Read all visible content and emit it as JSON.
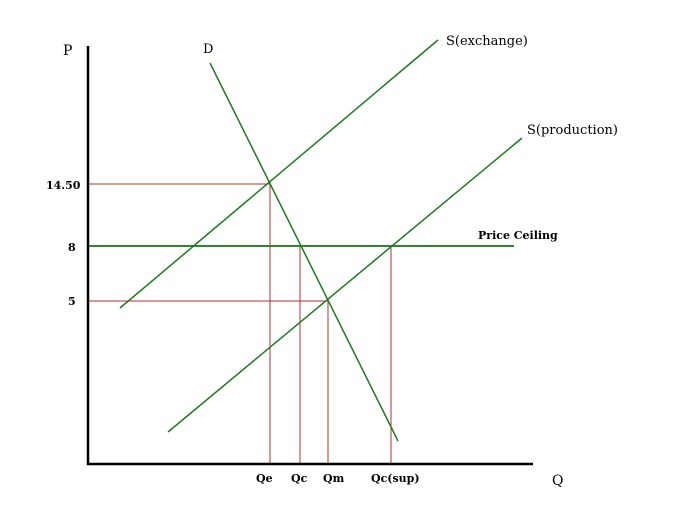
{
  "axes": {
    "y_label": "P",
    "x_label": "Q"
  },
  "curves": {
    "demand_label": "D",
    "supply_exchange_label": "S(exchange)",
    "supply_production_label": "S(production)",
    "ceiling_label": "Price Ceiling"
  },
  "price_ticks": [
    "14.50",
    "8",
    "5"
  ],
  "quantity_ticks": [
    "Qe",
    "Qc",
    "Qm",
    "Qc(sup)"
  ],
  "colors": {
    "curve": "#1e7a1e",
    "ceiling": "#2a8a2a",
    "guide": "#b03030",
    "axis": "#000000"
  }
}
